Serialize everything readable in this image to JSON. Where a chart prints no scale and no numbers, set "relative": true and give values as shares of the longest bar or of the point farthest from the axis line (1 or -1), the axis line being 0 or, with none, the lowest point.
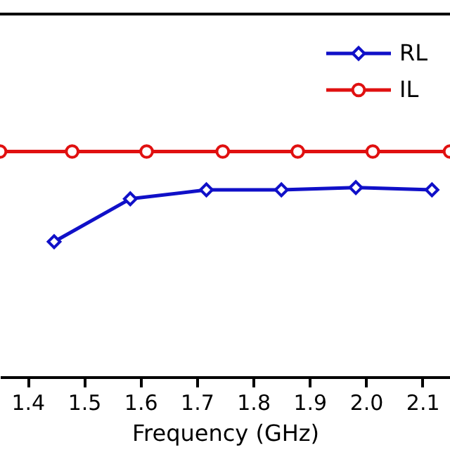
{
  "chart_data": {
    "type": "line",
    "xlabel": "Frequency (GHz)",
    "relative": true,
    "xlim": [
      1.351,
      2.149
    ],
    "xticks": [
      1.4,
      1.5,
      1.6,
      1.7,
      1.8,
      1.9,
      {
        "value": 2.0,
        "label": "2.0"
      },
      2.1
    ],
    "series": [
      {
        "name": "RL",
        "color": "#1010c8",
        "marker": "diamond",
        "x": [
          1.447,
          1.582,
          1.717,
          1.85,
          1.982,
          2.117
        ],
        "values": [
          0.6,
          0.79,
          0.83,
          0.83,
          0.84,
          0.83
        ]
      },
      {
        "name": "IL",
        "color": "#e01010",
        "marker": "circle",
        "x": [
          1.351,
          1.479,
          1.611,
          1.746,
          1.879,
          2.012,
          2.149
        ],
        "values": [
          1.0,
          1.0,
          1.0,
          1.0,
          1.0,
          1.0,
          1.0
        ]
      }
    ],
    "grid": false,
    "legend": "top right",
    "line_style": "solid"
  }
}
